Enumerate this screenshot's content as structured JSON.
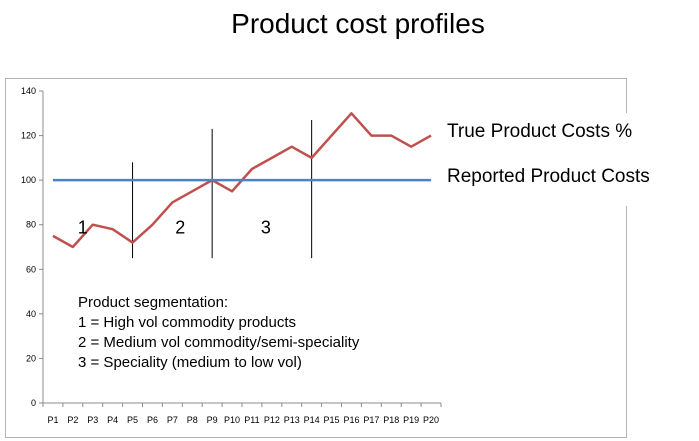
{
  "slide": {
    "title": "Product cost profiles"
  },
  "chart_data": {
    "type": "line",
    "title": "",
    "categories": [
      "P1",
      "P2",
      "P3",
      "P4",
      "P5",
      "P6",
      "P7",
      "P8",
      "P9",
      "P10",
      "P11",
      "P12",
      "P13",
      "P14",
      "P15",
      "P16",
      "P17",
      "P18",
      "P19",
      "P20"
    ],
    "ylim": [
      0,
      140
    ],
    "yticks": [
      0,
      20,
      40,
      60,
      80,
      100,
      120,
      140
    ],
    "grid": false,
    "series": [
      {
        "name": "True Product Costs %",
        "color": "#c0504d",
        "values": [
          75,
          70,
          80,
          78,
          72,
          80,
          90,
          95,
          100,
          95,
          105,
          110,
          115,
          110,
          120,
          130,
          120,
          120,
          115,
          120
        ]
      },
      {
        "name": "Reported Product Costs",
        "color": "#4f81bd",
        "values": [
          100,
          100,
          100,
          100,
          100,
          100,
          100,
          100,
          100,
          100,
          100,
          100,
          100,
          100,
          100,
          100,
          100,
          100,
          100,
          100
        ]
      }
    ],
    "dividers": [
      {
        "x": 4.5,
        "ymin": 65,
        "ymax": 108
      },
      {
        "x": 8.5,
        "ymin": 65,
        "ymax": 123
      },
      {
        "x": 13.5,
        "ymin": 65,
        "ymax": 127
      }
    ],
    "segment_labels": [
      {
        "text": "1",
        "x": 2.0,
        "y": 76
      },
      {
        "text": "2",
        "x": 6.9,
        "y": 76
      },
      {
        "text": "3",
        "x": 11.2,
        "y": 76
      }
    ]
  },
  "legend": {
    "true_costs": "True Product Costs %",
    "reported_costs": "Reported Product Costs"
  },
  "note": {
    "heading": "Product segmentation:",
    "line1": "1 = High vol commodity products",
    "line2": "2 = Medium vol commodity/semi-speciality",
    "line3": "3 = Speciality (medium to low vol)"
  }
}
